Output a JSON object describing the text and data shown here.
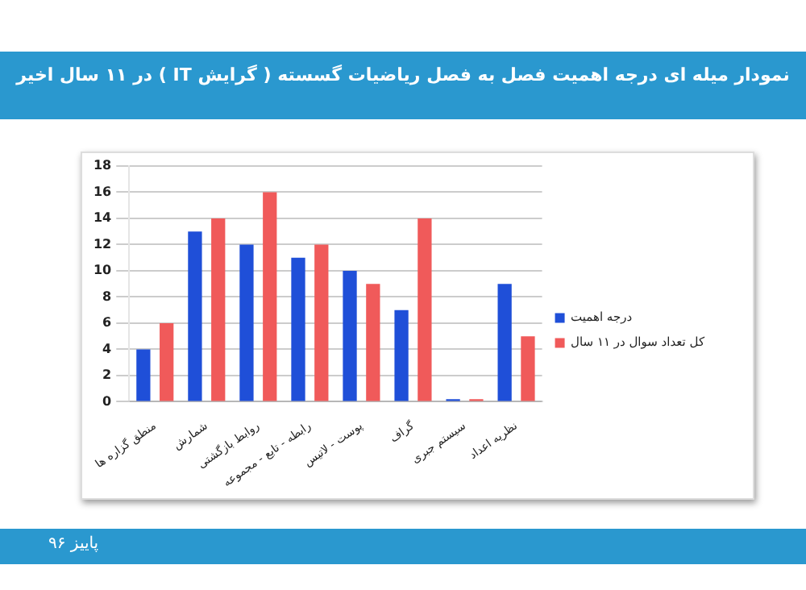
{
  "chart_data": {
    "type": "bar",
    "title": "نمودار میله ای درجه اهمیت فصل به فصل ریاضیات گسسته ( گرایش IT ) در ۱۱ سال اخیر",
    "categories": [
      "منطق گزاره ها",
      "شمارش",
      "روابط بازگشتی",
      "رابطه - تابع - مجموعه",
      "پوست - لاتیس",
      "گراف",
      "سیستم جبری",
      "نظریه اعداد"
    ],
    "series": [
      {
        "name": "درجه اهمیت",
        "color": "#1f4fd8",
        "values": [
          4,
          13,
          12,
          11,
          10,
          7,
          0.2,
          9
        ]
      },
      {
        "name": "کل تعداد سوال در ۱۱ سال",
        "color": "#f05a5a",
        "values": [
          6,
          14,
          16,
          12,
          9,
          14,
          0.2,
          5
        ]
      }
    ],
    "ylim": [
      0,
      18
    ],
    "yticks": [
      0,
      2,
      4,
      6,
      8,
      10,
      12,
      14,
      16,
      18
    ],
    "grid": "y",
    "legend": "right",
    "annotations": [
      "پاییز ۹۶"
    ]
  }
}
